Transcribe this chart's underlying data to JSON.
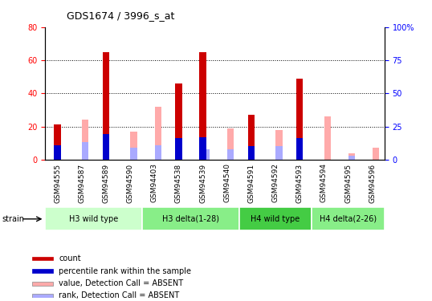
{
  "title": "GDS1674 / 3996_s_at",
  "samples": [
    "GSM94555",
    "GSM94587",
    "GSM94589",
    "GSM94590",
    "GSM94403",
    "GSM94538",
    "GSM94539",
    "GSM94540",
    "GSM94591",
    "GSM94592",
    "GSM94593",
    "GSM94594",
    "GSM94595",
    "GSM94596"
  ],
  "count": [
    21,
    0,
    65,
    0,
    0,
    46,
    65,
    0,
    27,
    0,
    49,
    0,
    0,
    0
  ],
  "percentile_rank": [
    11,
    0,
    19,
    0,
    0,
    16,
    17,
    0,
    10,
    0,
    16,
    0,
    0,
    0
  ],
  "value_absent": [
    0,
    24,
    0,
    17,
    32,
    0,
    0,
    19,
    0,
    18,
    0,
    26,
    4,
    7
  ],
  "rank_absent": [
    0,
    13,
    0,
    9,
    11,
    0,
    8,
    8,
    0,
    10,
    0,
    0,
    3,
    0
  ],
  "group_data": [
    {
      "start": 0,
      "end": 3,
      "label": "H3 wild type",
      "color": "#ccffcc"
    },
    {
      "start": 4,
      "end": 7,
      "label": "H3 delta(1-28)",
      "color": "#88ee88"
    },
    {
      "start": 8,
      "end": 10,
      "label": "H4 wild type",
      "color": "#44cc44"
    },
    {
      "start": 11,
      "end": 13,
      "label": "H4 delta(2-26)",
      "color": "#88ee88"
    }
  ],
  "ylim_left": [
    0,
    80
  ],
  "ylim_right": [
    0,
    100
  ],
  "yticks_left": [
    0,
    20,
    40,
    60,
    80
  ],
  "yticks_right": [
    0,
    25,
    50,
    75,
    100
  ],
  "ytick_labels_right": [
    "0",
    "25",
    "50",
    "75",
    "100%"
  ],
  "color_count": "#cc0000",
  "color_percentile": "#0000cc",
  "color_value_absent": "#ffaaaa",
  "color_rank_absent": "#aaaaff",
  "legend_items": [
    {
      "label": "count",
      "color": "#cc0000"
    },
    {
      "label": "percentile rank within the sample",
      "color": "#0000cc"
    },
    {
      "label": "value, Detection Call = ABSENT",
      "color": "#ffaaaa"
    },
    {
      "label": "rank, Detection Call = ABSENT",
      "color": "#aaaaff"
    }
  ],
  "bg_color": "#ffffff",
  "bar_width": 0.28,
  "bar_gap": 0.15
}
